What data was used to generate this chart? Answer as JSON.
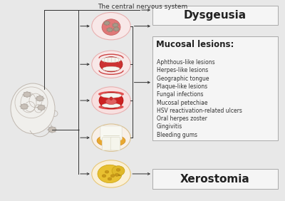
{
  "background_color": "#e8e8e8",
  "title": "The central nervous system",
  "title_fontsize": 6.5,
  "title_color": "#333333",
  "dysgeusia_label": "Dysgeusia",
  "dysgeusia_fontsize": 11,
  "xerostomia_label": "Xerostomia",
  "xerostomia_fontsize": 11,
  "mucosal_title": "Mucosal lesions:",
  "mucosal_title_fontsize": 8.5,
  "mucosal_items": [
    "Aphthous-like lesions",
    "Herpes-like lesions",
    "Geographic tongue",
    "Plaque-like lesions",
    "Fungal infections",
    "Mucosal petechiae",
    "HSV reactivation-related ulcers",
    "Oral herpes zoster",
    "Gingivitis",
    "Bleeding gums"
  ],
  "mucosal_item_fontsize": 5.5,
  "box_facecolor": "#f5f5f5",
  "box_edgecolor": "#aaaaaa",
  "arrow_color": "#333333",
  "circle_face_colors": [
    "#f8e8e8",
    "#f8e8e8",
    "#f8e0e0",
    "#f8f0e8",
    "#faf0d8"
  ],
  "circle_edge_colors": [
    "#e8b0b0",
    "#e8b0b0",
    "#e8b0b0",
    "#d8c090",
    "#e8c878"
  ],
  "label_fontsize": 7
}
